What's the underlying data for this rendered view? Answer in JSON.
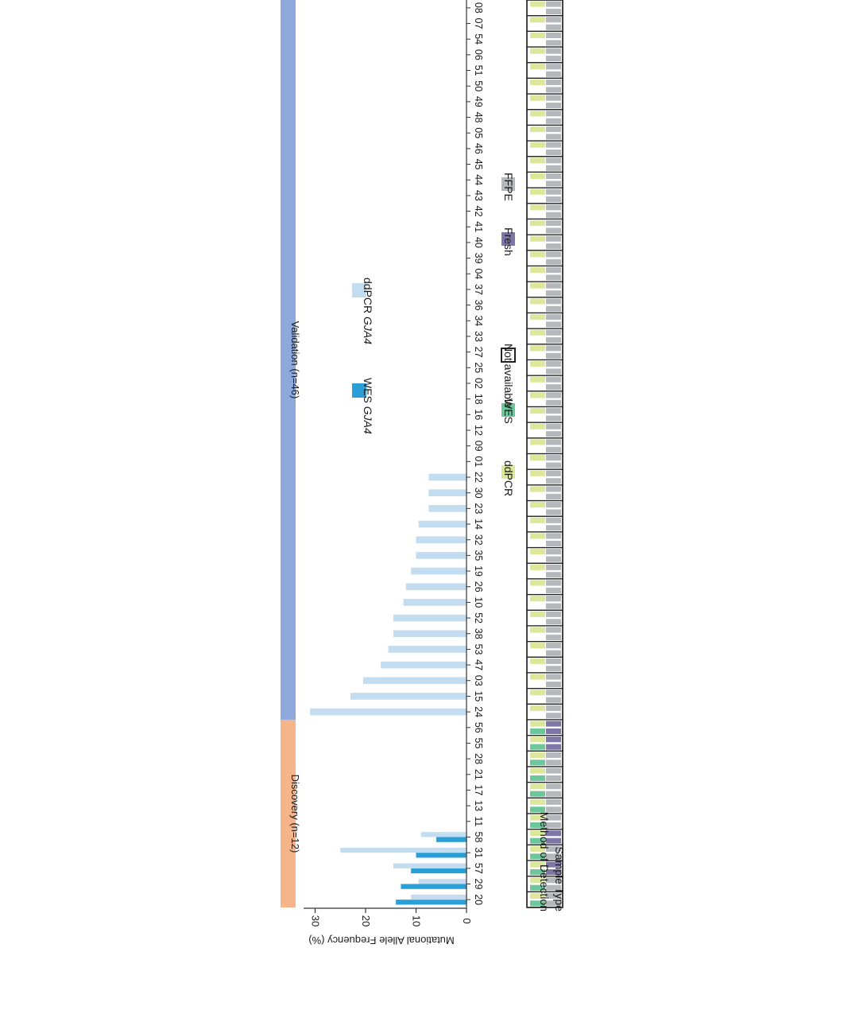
{
  "figure": {
    "colors": {
      "discovery_band": "#f5b48a",
      "validation_band": "#8fa8dc",
      "wes_bar": "#2a9fd6",
      "ddpcr_bar": "#c3dcef",
      "ddpcr_method": "#dde79a",
      "wes_method": "#6cc79a",
      "fresh": "#7e76a6",
      "ffpe": "#b4b7bb",
      "axis": "#333333"
    }
  },
  "chart_data": {
    "type": "bar",
    "orientation": "rotated 90 degrees clockwise",
    "ylabel": "Mutational Allele Frequency (%)",
    "ylim": [
      0,
      35
    ],
    "yticks": [
      0,
      10,
      20,
      30
    ],
    "groups": [
      {
        "label": "Discovery (n=12)",
        "start": 0,
        "count": 12
      },
      {
        "label": "Validation (n=46)",
        "start": 12,
        "count": 46
      }
    ],
    "legend": {
      "wes_prefix": "WES ",
      "wes_gene": "GJA4",
      "ddpcr_prefix": "ddPCR ",
      "ddpcr_gene": "GJA4"
    },
    "categories": [
      "20",
      "29",
      "57",
      "31",
      "58",
      "11",
      "13",
      "17",
      "21",
      "28",
      "55",
      "56",
      "24",
      "15",
      "03",
      "47",
      "53",
      "38",
      "52",
      "10",
      "26",
      "19",
      "35",
      "32",
      "14",
      "23",
      "30",
      "22",
      "01",
      "09",
      "12",
      "16",
      "18",
      "02",
      "25",
      "27",
      "33",
      "34",
      "36",
      "37",
      "04",
      "39",
      "40",
      "41",
      "42",
      "43",
      "44",
      "45",
      "46",
      "05",
      "48",
      "49",
      "50",
      "51",
      "06",
      "54",
      "07",
      "08"
    ],
    "series": [
      {
        "name": "WES GJA4",
        "values": [
          14.0,
          13.0,
          11.0,
          10.0,
          6.0,
          null,
          null,
          null,
          null,
          null,
          null,
          null,
          null,
          null,
          null,
          null,
          null,
          null,
          null,
          null,
          null,
          null,
          null,
          null,
          null,
          null,
          null,
          null,
          null,
          null,
          null,
          null,
          null,
          null,
          null,
          null,
          null,
          null,
          null,
          null,
          null,
          null,
          null,
          null,
          null,
          null,
          null,
          null,
          null,
          null,
          null,
          null,
          null,
          null,
          null,
          null,
          null,
          null
        ]
      },
      {
        "name": "ddPCR GJA4",
        "values": [
          11.0,
          9.5,
          14.5,
          25.0,
          9.0,
          null,
          null,
          null,
          null,
          null,
          null,
          null,
          31.0,
          23.0,
          20.5,
          17.0,
          15.5,
          14.5,
          14.5,
          12.5,
          12.0,
          11.0,
          10.0,
          10.0,
          9.5,
          7.5,
          7.5,
          7.5,
          null,
          null,
          null,
          null,
          null,
          null,
          null,
          null,
          null,
          null,
          null,
          null,
          null,
          null,
          null,
          null,
          null,
          null,
          null,
          null,
          null,
          null,
          null,
          null,
          null,
          null,
          null,
          null,
          null,
          null
        ]
      }
    ],
    "tracks": {
      "method_label": "Method of Detection",
      "sample_label": "Sample Type",
      "method_wes": [
        true,
        true,
        true,
        true,
        true,
        true,
        true,
        true,
        true,
        true,
        true,
        true,
        false,
        false,
        false,
        false,
        false,
        false,
        false,
        false,
        false,
        false,
        false,
        false,
        false,
        false,
        false,
        false,
        false,
        false,
        false,
        false,
        false,
        false,
        false,
        false,
        false,
        false,
        false,
        false,
        false,
        false,
        false,
        false,
        false,
        false,
        false,
        false,
        false,
        false,
        false,
        false,
        false,
        false,
        false,
        false,
        false,
        false
      ],
      "sample_type": [
        "FFPE",
        "FFPE",
        "Fresh",
        "FFPE",
        "Fresh",
        "FFPE",
        "FFPE",
        "FFPE",
        "FFPE",
        "FFPE",
        "Fresh",
        "Fresh",
        "FFPE",
        "FFPE",
        "FFPE",
        "FFPE",
        "FFPE",
        "FFPE",
        "FFPE",
        "FFPE",
        "FFPE",
        "FFPE",
        "FFPE",
        "FFPE",
        "FFPE",
        "FFPE",
        "FFPE",
        "FFPE",
        "FFPE",
        "FFPE",
        "FFPE",
        "FFPE",
        "FFPE",
        "FFPE",
        "FFPE",
        "FFPE",
        "FFPE",
        "FFPE",
        "FFPE",
        "FFPE",
        "FFPE",
        "FFPE",
        "FFPE",
        "FFPE",
        "FFPE",
        "FFPE",
        "FFPE",
        "FFPE",
        "FFPE",
        "FFPE",
        "FFPE",
        "FFPE",
        "FFPE",
        "FFPE",
        "FFPE",
        "FFPE",
        "FFPE",
        "FFPE"
      ]
    },
    "track_legend": {
      "ddpcr": "ddPCR",
      "wes": "WES",
      "not_available": "Not available",
      "fresh": "Fresh",
      "ffpe": "FFPE"
    }
  }
}
